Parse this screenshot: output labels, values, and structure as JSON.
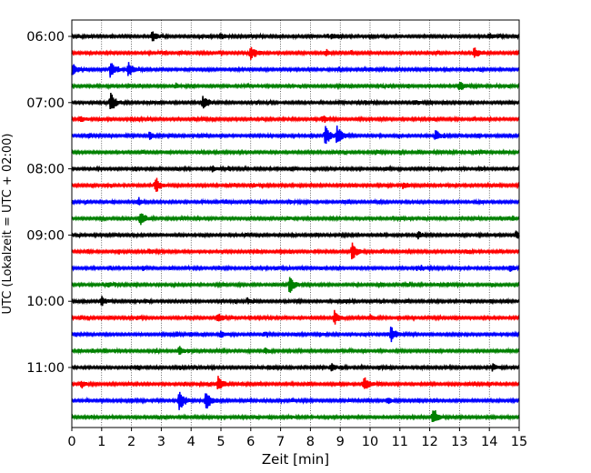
{
  "chart_data": {
    "type": "line",
    "subtype": "helicorder",
    "xlabel": "Zeit  [min]",
    "ylabel": "UTC (Lokalzeit = UTC + 02:00)",
    "xlim": [
      0,
      15
    ],
    "x_ticks": [
      0,
      1,
      2,
      3,
      4,
      5,
      6,
      7,
      8,
      9,
      10,
      11,
      12,
      13,
      14,
      15
    ],
    "x_tick_labels": [
      "0",
      "1",
      "2",
      "3",
      "4",
      "5",
      "6",
      "7",
      "8",
      "9",
      "10",
      "11",
      "12",
      "13",
      "14",
      "15"
    ],
    "y_tick_labels": [
      "06:00",
      "07:00",
      "08:00",
      "09:00",
      "10:00",
      "11:00"
    ],
    "y_tick_rows": [
      0,
      4,
      8,
      12,
      16,
      20
    ],
    "grid": "vertical dotted",
    "row_minutes": 15,
    "row_colors": [
      "#000000",
      "#ff0000",
      "#0000ff",
      "#008000"
    ],
    "series": [
      {
        "start": "06:00",
        "events": [
          [
            2.7,
            6
          ],
          [
            5.0,
            3
          ],
          [
            8.7,
            3
          ],
          [
            14.0,
            3
          ]
        ]
      },
      {
        "start": "06:15",
        "events": [
          [
            6.0,
            7
          ],
          [
            13.5,
            6
          ],
          [
            8.5,
            2
          ]
        ]
      },
      {
        "start": "06:30",
        "events": [
          [
            0.0,
            8
          ],
          [
            1.3,
            10
          ],
          [
            1.9,
            8
          ],
          [
            10.0,
            2
          ]
        ]
      },
      {
        "start": "06:45",
        "events": [
          [
            13.0,
            6
          ],
          [
            3.5,
            2
          ]
        ]
      },
      {
        "start": "07:00",
        "events": [
          [
            1.3,
            12
          ],
          [
            4.4,
            7
          ],
          [
            11.5,
            3
          ]
        ]
      },
      {
        "start": "07:15",
        "events": [
          [
            0.3,
            3
          ],
          [
            8.4,
            3
          ],
          [
            4.1,
            2
          ]
        ]
      },
      {
        "start": "07:30",
        "events": [
          [
            8.5,
            11
          ],
          [
            8.9,
            10
          ],
          [
            12.2,
            6
          ],
          [
            2.6,
            4
          ]
        ]
      },
      {
        "start": "07:45",
        "events": [
          [
            10.2,
            2
          ],
          [
            13.5,
            2
          ]
        ]
      },
      {
        "start": "08:00",
        "events": [
          [
            4.7,
            3
          ],
          [
            10.5,
            2
          ]
        ]
      },
      {
        "start": "08:15",
        "events": [
          [
            2.8,
            8
          ],
          [
            6.1,
            2
          ],
          [
            11.1,
            3
          ]
        ]
      },
      {
        "start": "08:30",
        "events": [
          [
            2.2,
            3
          ],
          [
            7.3,
            2
          ]
        ]
      },
      {
        "start": "08:45",
        "events": [
          [
            2.3,
            8
          ],
          [
            7.2,
            2
          ]
        ]
      },
      {
        "start": "09:00",
        "events": [
          [
            11.6,
            4
          ],
          [
            14.9,
            3
          ]
        ]
      },
      {
        "start": "09:15",
        "events": [
          [
            9.4,
            10
          ],
          [
            2.6,
            3
          ]
        ]
      },
      {
        "start": "09:30",
        "events": [
          [
            14.7,
            4
          ],
          [
            11.7,
            3
          ]
        ]
      },
      {
        "start": "09:45",
        "events": [
          [
            7.3,
            10
          ],
          [
            1.2,
            3
          ]
        ]
      },
      {
        "start": "10:00",
        "events": [
          [
            1.0,
            5
          ],
          [
            5.9,
            2
          ],
          [
            9.1,
            2
          ]
        ]
      },
      {
        "start": "10:15",
        "events": [
          [
            4.9,
            5
          ],
          [
            8.8,
            8
          ],
          [
            10.0,
            3
          ],
          [
            2.2,
            2
          ]
        ]
      },
      {
        "start": "10:30",
        "events": [
          [
            10.7,
            9
          ],
          [
            5.0,
            4
          ],
          [
            8.3,
            2
          ]
        ]
      },
      {
        "start": "10:45",
        "events": [
          [
            3.6,
            5
          ],
          [
            6.5,
            3
          ]
        ]
      },
      {
        "start": "11:00",
        "events": [
          [
            8.7,
            4
          ],
          [
            14.1,
            4
          ],
          [
            6.6,
            2
          ]
        ]
      },
      {
        "start": "11:15",
        "events": [
          [
            4.9,
            9
          ],
          [
            9.8,
            9
          ],
          [
            0.3,
            3
          ]
        ]
      },
      {
        "start": "11:30",
        "events": [
          [
            3.6,
            13
          ],
          [
            4.5,
            11
          ],
          [
            10.6,
            3
          ]
        ]
      },
      {
        "start": "11:45",
        "events": [
          [
            12.1,
            9
          ],
          [
            7.3,
            2
          ]
        ]
      }
    ]
  }
}
